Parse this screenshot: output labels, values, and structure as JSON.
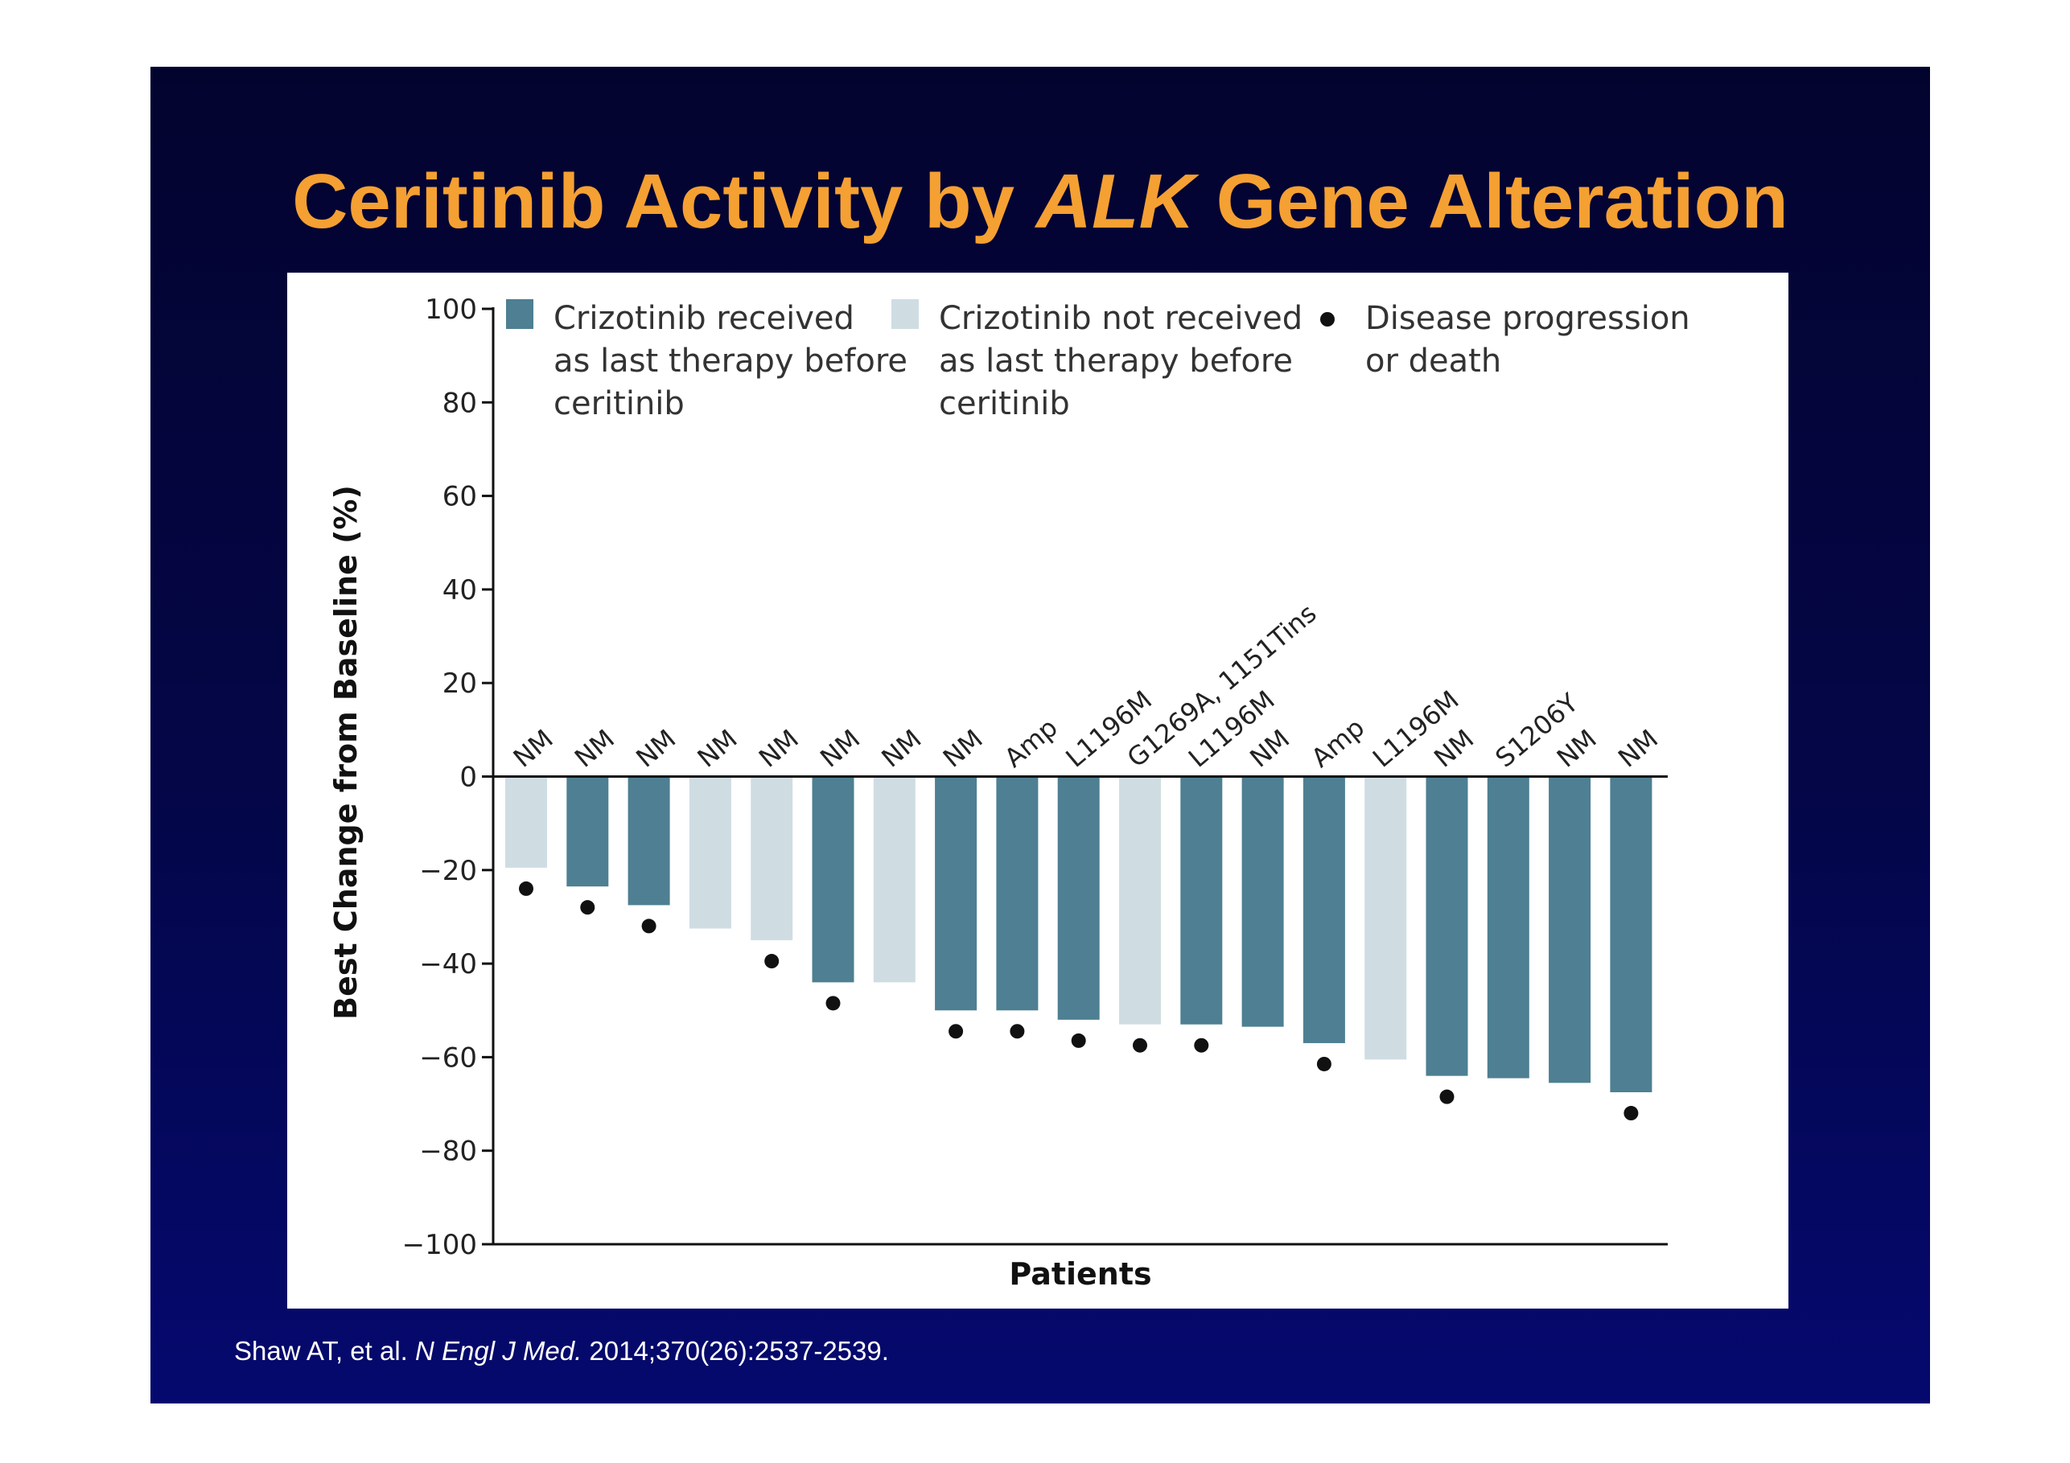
{
  "slide": {
    "title_part1": "Ceritinib Activity by ",
    "title_italic": "ALK",
    "title_part2": " Gene Alteration",
    "background_top": "#03042e",
    "background_bottom": "#05096e",
    "title_color": "#f5a032",
    "citation_part1": "Shaw AT, et al. ",
    "citation_italic": "N Engl J Med.",
    "citation_part2": " 2014;370(26):2537-2539."
  },
  "chart_data": {
    "type": "bar",
    "title": "",
    "xlabel": "Patients",
    "ylabel_part1": "Best Change from ",
    "ylabel_bold": "Baseline",
    "ylabel_part2": " (%)",
    "ylim": [
      -100,
      100
    ],
    "yticks": [
      100,
      80,
      60,
      40,
      20,
      0,
      -20,
      -40,
      -60,
      -80,
      -100
    ],
    "ytick_labels": [
      "100",
      "80",
      "60",
      "40",
      "20",
      "0",
      "−20",
      "−40",
      "−60",
      "−80",
      "−100"
    ],
    "grid": false,
    "legend_position": "top",
    "colors": {
      "crizotinib_received": "#4e7f92",
      "crizotinib_not_received": "#cfdde3",
      "progression_dot": "#111111"
    },
    "legend": [
      {
        "kind": "crizotinib_received",
        "lines": [
          "Crizotinib received",
          "as last therapy before",
          "ceritinib"
        ]
      },
      {
        "kind": "crizotinib_not_received",
        "lines": [
          "Crizotinib not received",
          "as last therapy before",
          "ceritinib"
        ]
      },
      {
        "kind": "progression_dot",
        "lines": [
          "Disease progression",
          "or death"
        ]
      }
    ],
    "bars": [
      {
        "label": "NM",
        "value": -19.5,
        "group": "crizotinib_not_received",
        "progression": true
      },
      {
        "label": "NM",
        "value": -23.5,
        "group": "crizotinib_received",
        "progression": true
      },
      {
        "label": "NM",
        "value": -27.5,
        "group": "crizotinib_received",
        "progression": true
      },
      {
        "label": "NM",
        "value": -32.5,
        "group": "crizotinib_not_received",
        "progression": false
      },
      {
        "label": "NM",
        "value": -35,
        "group": "crizotinib_not_received",
        "progression": true
      },
      {
        "label": "NM",
        "value": -44,
        "group": "crizotinib_received",
        "progression": true
      },
      {
        "label": "NM",
        "value": -44,
        "group": "crizotinib_not_received",
        "progression": false
      },
      {
        "label": "NM",
        "value": -50,
        "group": "crizotinib_received",
        "progression": true
      },
      {
        "label": "Amp",
        "value": -50,
        "group": "crizotinib_received",
        "progression": true
      },
      {
        "label": "L1196M",
        "value": -52,
        "group": "crizotinib_received",
        "progression": true
      },
      {
        "label": "G1269A, 1151Tins",
        "value": -53,
        "group": "crizotinib_not_received",
        "progression": true
      },
      {
        "label": "L1196M",
        "value": -53,
        "group": "crizotinib_received",
        "progression": true
      },
      {
        "label": "NM",
        "value": -53.5,
        "group": "crizotinib_received",
        "progression": false
      },
      {
        "label": "Amp",
        "value": -57,
        "group": "crizotinib_received",
        "progression": true
      },
      {
        "label": "L1196M",
        "value": -60.5,
        "group": "crizotinib_not_received",
        "progression": false
      },
      {
        "label": "NM",
        "value": -64,
        "group": "crizotinib_received",
        "progression": true
      },
      {
        "label": "S1206Y",
        "value": -64.5,
        "group": "crizotinib_received",
        "progression": false
      },
      {
        "label": "NM",
        "value": -65.5,
        "group": "crizotinib_received",
        "progression": false
      },
      {
        "label": "NM",
        "value": -67.5,
        "group": "crizotinib_received",
        "progression": true
      }
    ]
  }
}
